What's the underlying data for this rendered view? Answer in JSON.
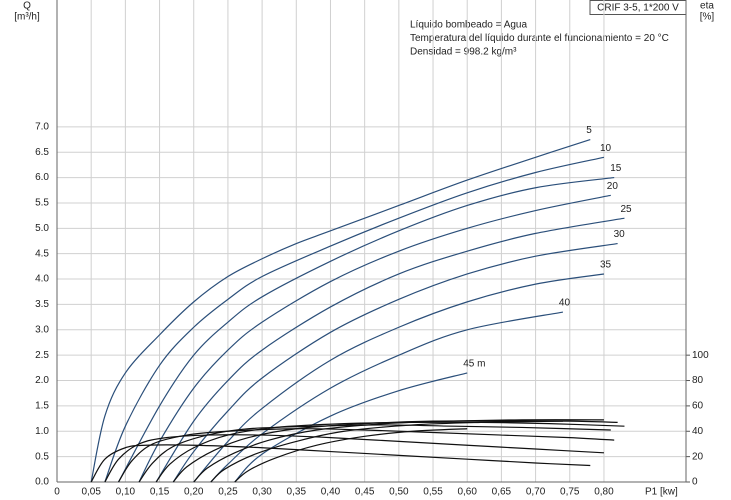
{
  "chart_data": {
    "type": "line",
    "info_box": "CRIF 3-5, 1*200 V",
    "notes": [
      "Líquido bombeado = Agua",
      "Temperatura del líquido durante el funcionamiento = 20 °C",
      "Densidad = 998.2 kg/m³"
    ],
    "y_axis_label": "Q",
    "y_axis_unit": "[m³/h]",
    "y2_axis_label": "eta",
    "y2_axis_unit": "[%]",
    "x_axis_label": "P1 [kw]",
    "xlim": [
      0,
      0.92
    ],
    "ylim": [
      0,
      9.5
    ],
    "y2lim": [
      0,
      380
    ],
    "grid": true,
    "xticks": [
      0,
      {
        "value": 0.05,
        "label": "0,05"
      },
      {
        "value": 0.1,
        "label": "0,10"
      },
      {
        "value": 0.15,
        "label": "0,15"
      },
      {
        "value": 0.2,
        "label": "0,20"
      },
      {
        "value": 0.25,
        "label": "0,25"
      },
      {
        "value": 0.3,
        "label": "0,30"
      },
      {
        "value": 0.35,
        "label": "0,35"
      },
      {
        "value": 0.4,
        "label": "0,40"
      },
      {
        "value": 0.45,
        "label": "0,45"
      },
      {
        "value": 0.5,
        "label": "0,50"
      },
      {
        "value": 0.55,
        "label": "0,55"
      },
      {
        "value": 0.6,
        "label": "0,60"
      },
      {
        "value": 0.65,
        "label": "0,65"
      },
      {
        "value": 0.7,
        "label": "0,70"
      },
      {
        "value": 0.75,
        "label": "0,75"
      },
      {
        "value": 0.8,
        "label": "0,80"
      }
    ],
    "yticks": [
      {
        "value": 0,
        "label": "0.0"
      },
      0.5,
      {
        "value": 1,
        "label": "1.0"
      },
      1.5,
      {
        "value": 2,
        "label": "2.0"
      },
      2.5,
      {
        "value": 3,
        "label": "3.0"
      },
      3.5,
      {
        "value": 4,
        "label": "4.0"
      },
      4.5,
      {
        "value": 5,
        "label": "5.0"
      },
      5.5,
      {
        "value": 6,
        "label": "6.0"
      },
      6.5,
      {
        "value": 7,
        "label": "7.0"
      }
    ],
    "y2ticks": [
      0,
      20,
      40,
      60,
      80,
      100
    ],
    "series": [
      {
        "name": "5",
        "color": "#2b4f7a",
        "x": [
          0.05,
          0.07,
          0.1,
          0.15,
          0.2,
          0.25,
          0.3,
          0.35,
          0.4,
          0.5,
          0.6,
          0.7,
          0.78
        ],
        "values": [
          0,
          1.3,
          2.15,
          2.9,
          3.55,
          4.05,
          4.4,
          4.7,
          4.95,
          5.45,
          5.95,
          6.4,
          6.75
        ]
      },
      {
        "name": "10",
        "color": "#2b4f7a",
        "x": [
          0.07,
          0.1,
          0.15,
          0.2,
          0.25,
          0.3,
          0.4,
          0.5,
          0.6,
          0.7,
          0.8
        ],
        "values": [
          0,
          1.1,
          2.3,
          3.05,
          3.6,
          4.05,
          4.65,
          5.2,
          5.7,
          6.1,
          6.4
        ]
      },
      {
        "name": "15",
        "color": "#2b4f7a",
        "x": [
          0.09,
          0.15,
          0.2,
          0.25,
          0.3,
          0.4,
          0.5,
          0.6,
          0.7,
          0.815
        ],
        "values": [
          0,
          1.5,
          2.5,
          3.15,
          3.65,
          4.35,
          4.95,
          5.45,
          5.8,
          6.0
        ]
      },
      {
        "name": "20",
        "color": "#2b4f7a",
        "x": [
          0.12,
          0.15,
          0.2,
          0.25,
          0.3,
          0.4,
          0.5,
          0.6,
          0.7,
          0.81
        ],
        "values": [
          0,
          0.8,
          1.85,
          2.6,
          3.15,
          3.95,
          4.55,
          5.0,
          5.35,
          5.65
        ]
      },
      {
        "name": "25",
        "color": "#2b4f7a",
        "x": [
          0.145,
          0.2,
          0.25,
          0.3,
          0.4,
          0.5,
          0.6,
          0.7,
          0.83
        ],
        "values": [
          0,
          1.2,
          2.0,
          2.6,
          3.45,
          4.1,
          4.55,
          4.9,
          5.2
        ]
      },
      {
        "name": "30",
        "color": "#2b4f7a",
        "x": [
          0.17,
          0.2,
          0.25,
          0.3,
          0.4,
          0.5,
          0.6,
          0.7,
          0.82
        ],
        "values": [
          0,
          0.6,
          1.4,
          2.05,
          2.95,
          3.6,
          4.1,
          4.45,
          4.7
        ]
      },
      {
        "name": "35",
        "color": "#2b4f7a",
        "x": [
          0.2,
          0.25,
          0.3,
          0.4,
          0.5,
          0.6,
          0.7,
          0.8
        ],
        "values": [
          0,
          0.8,
          1.45,
          2.4,
          3.05,
          3.55,
          3.9,
          4.1
        ]
      },
      {
        "name": "40",
        "color": "#2b4f7a",
        "x": [
          0.225,
          0.25,
          0.3,
          0.4,
          0.5,
          0.6,
          0.74
        ],
        "values": [
          0,
          0.35,
          0.95,
          1.85,
          2.5,
          3.0,
          3.35
        ]
      },
      {
        "name": "45 m",
        "color": "#2b4f7a",
        "x": [
          0.26,
          0.3,
          0.4,
          0.5,
          0.6
        ],
        "values": [
          0,
          0.55,
          1.3,
          1.8,
          2.15
        ]
      },
      {
        "color": "#111111",
        "axis": "y2",
        "x": [
          0.05,
          0.07,
          0.1,
          0.13,
          0.2,
          0.3,
          0.4,
          0.5,
          0.6,
          0.7,
          0.78
        ],
        "values": [
          0,
          18,
          27,
          29,
          29,
          27,
          24,
          21,
          18,
          15,
          13
        ]
      },
      {
        "color": "#111111",
        "axis": "y2",
        "x": [
          0.07,
          0.09,
          0.12,
          0.16,
          0.22,
          0.3,
          0.4,
          0.5,
          0.6,
          0.7,
          0.8
        ],
        "values": [
          0,
          18,
          30,
          35,
          37,
          37,
          35,
          32,
          29,
          26,
          23
        ]
      },
      {
        "color": "#111111",
        "axis": "y2",
        "x": [
          0.09,
          0.11,
          0.14,
          0.19,
          0.25,
          0.35,
          0.45,
          0.55,
          0.65,
          0.75,
          0.815
        ],
        "values": [
          0,
          17,
          30,
          37,
          40,
          42,
          41,
          39,
          37,
          35,
          33
        ]
      },
      {
        "color": "#111111",
        "axis": "y2",
        "x": [
          0.12,
          0.14,
          0.17,
          0.22,
          0.28,
          0.38,
          0.48,
          0.58,
          0.68,
          0.81
        ],
        "values": [
          0,
          15,
          28,
          37,
          42,
          44,
          45,
          44,
          43,
          41
        ]
      },
      {
        "color": "#111111",
        "axis": "y2",
        "x": [
          0.145,
          0.165,
          0.2,
          0.25,
          0.32,
          0.42,
          0.52,
          0.62,
          0.72,
          0.83
        ],
        "values": [
          0,
          14,
          27,
          37,
          43,
          46,
          47,
          47,
          46,
          44
        ]
      },
      {
        "color": "#111111",
        "axis": "y2",
        "x": [
          0.17,
          0.19,
          0.23,
          0.28,
          0.35,
          0.45,
          0.55,
          0.65,
          0.75,
          0.82
        ],
        "values": [
          0,
          12,
          25,
          35,
          42,
          46,
          48,
          48,
          48,
          47
        ]
      },
      {
        "color": "#111111",
        "axis": "y2",
        "x": [
          0.2,
          0.22,
          0.26,
          0.31,
          0.38,
          0.48,
          0.58,
          0.68,
          0.8
        ],
        "values": [
          0,
          11,
          23,
          33,
          41,
          46,
          48,
          49,
          49
        ]
      },
      {
        "color": "#111111",
        "axis": "y2",
        "x": [
          0.225,
          0.245,
          0.29,
          0.35,
          0.42,
          0.52,
          0.62,
          0.74
        ],
        "values": [
          0,
          10,
          22,
          32,
          40,
          45,
          47,
          48
        ]
      },
      {
        "color": "#111111",
        "axis": "y2",
        "x": [
          0.26,
          0.28,
          0.32,
          0.38,
          0.45,
          0.52,
          0.6
        ],
        "values": [
          0,
          9,
          19,
          29,
          36,
          40,
          42
        ]
      }
    ]
  }
}
